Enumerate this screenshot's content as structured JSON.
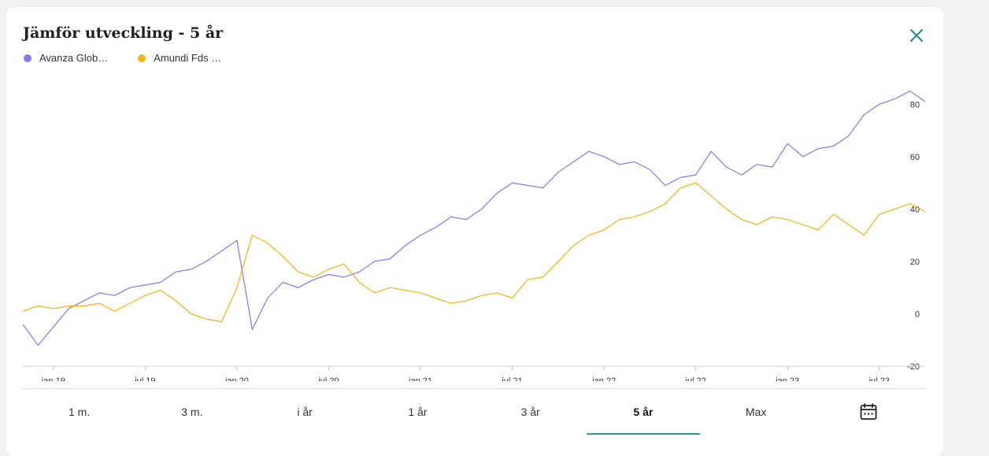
{
  "header": {
    "title": "Jämför utveckling - 5 år"
  },
  "legend": [
    {
      "label": "Avanza Glob…",
      "color": "#8b74f2"
    },
    {
      "label": "Amundi Fds …",
      "color": "#f6b20e"
    }
  ],
  "tabs": [
    {
      "label": "1 m.",
      "active": false
    },
    {
      "label": "3 m.",
      "active": false
    },
    {
      "label": "i år",
      "active": false
    },
    {
      "label": "1 år",
      "active": false
    },
    {
      "label": "3 år",
      "active": false
    },
    {
      "label": "5 år",
      "active": true
    },
    {
      "label": "Max",
      "active": false
    },
    {
      "icon": "calendar-icon",
      "active": false
    }
  ],
  "chart_data": {
    "type": "line",
    "xlabel": "",
    "ylabel": "",
    "ylim": [
      -20,
      90
    ],
    "yticks": [
      -20,
      0,
      20,
      40,
      60,
      80
    ],
    "x_range": [
      "2018-11",
      "2023-10"
    ],
    "xticks": [
      "jan 19",
      "jul 19",
      "jan 20",
      "jul 20",
      "jan 21",
      "jul 21",
      "jan 22",
      "jul 22",
      "jan 23",
      "jul 23"
    ],
    "grid": false,
    "legend": "top-left",
    "x": [
      "2018-11",
      "2018-12",
      "2019-01",
      "2019-02",
      "2019-03",
      "2019-04",
      "2019-05",
      "2019-06",
      "2019-07",
      "2019-08",
      "2019-09",
      "2019-10",
      "2019-11",
      "2019-12",
      "2020-01",
      "2020-02",
      "2020-03",
      "2020-04",
      "2020-05",
      "2020-06",
      "2020-07",
      "2020-08",
      "2020-09",
      "2020-10",
      "2020-11",
      "2020-12",
      "2021-01",
      "2021-02",
      "2021-03",
      "2021-04",
      "2021-05",
      "2021-06",
      "2021-07",
      "2021-08",
      "2021-09",
      "2021-10",
      "2021-11",
      "2021-12",
      "2022-01",
      "2022-02",
      "2022-03",
      "2022-04",
      "2022-05",
      "2022-06",
      "2022-07",
      "2022-08",
      "2022-09",
      "2022-10",
      "2022-11",
      "2022-12",
      "2023-01",
      "2023-02",
      "2023-03",
      "2023-04",
      "2023-05",
      "2023-06",
      "2023-07",
      "2023-08",
      "2023-09",
      "2023-10"
    ],
    "series": [
      {
        "name": "Avanza Glob…",
        "color": "#8b74f2",
        "values": [
          -4,
          -12,
          -5,
          2,
          5,
          8,
          7,
          10,
          11,
          12,
          16,
          17,
          20,
          24,
          28,
          -6,
          6,
          12,
          10,
          13,
          15,
          14,
          16,
          20,
          21,
          26,
          30,
          33,
          37,
          36,
          40,
          46,
          50,
          49,
          48,
          54,
          58,
          62,
          60,
          57,
          58,
          55,
          49,
          52,
          53,
          62,
          56,
          53,
          57,
          56,
          65,
          60,
          63,
          64,
          68,
          76,
          80,
          82,
          85,
          81
        ]
      },
      {
        "name": "Amundi Fds …",
        "color": "#f6b20e",
        "values": [
          1,
          3,
          2,
          3,
          3,
          4,
          1,
          4,
          7,
          9,
          5,
          0,
          -2,
          -3,
          10,
          30,
          27,
          22,
          16,
          14,
          17,
          19,
          12,
          8,
          10,
          9,
          8,
          6,
          4,
          5,
          7,
          8,
          6,
          13,
          14,
          20,
          26,
          30,
          32,
          36,
          37,
          39,
          42,
          48,
          50,
          45,
          40,
          36,
          34,
          37,
          36,
          34,
          32,
          38,
          34,
          30,
          38,
          40,
          42,
          39
        ]
      }
    ]
  }
}
